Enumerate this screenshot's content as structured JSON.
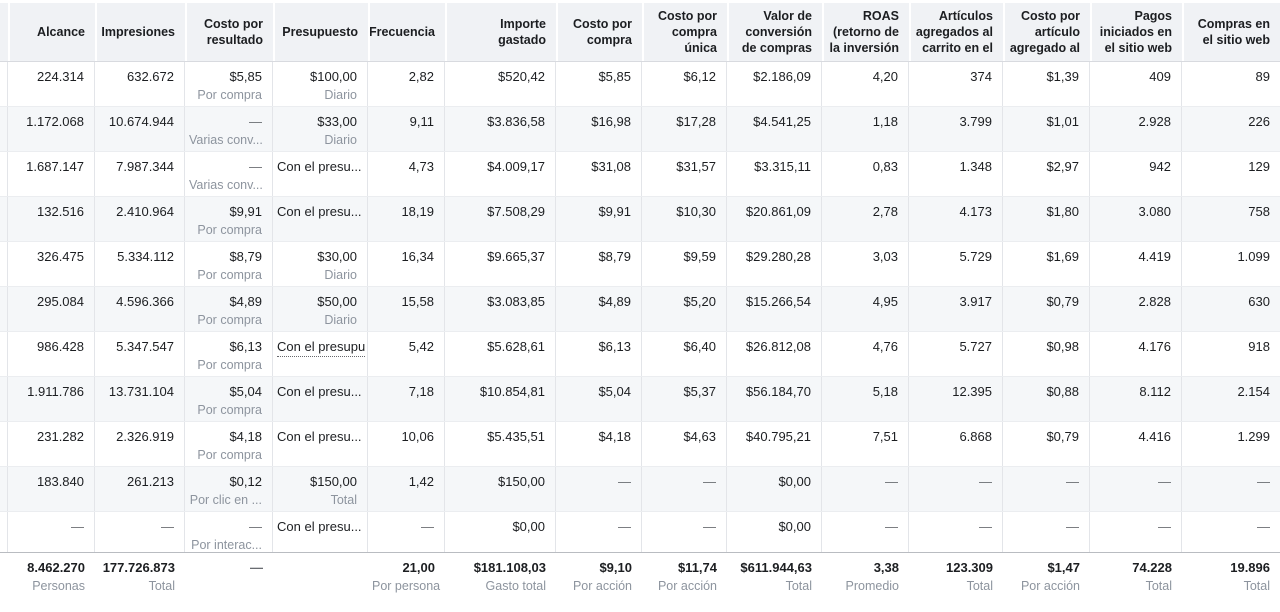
{
  "app": {
    "name": "Ads Manager metrics table (Spanish)"
  },
  "colors": {
    "header_bg": "#f0f2f5",
    "row_alt_bg": "#f5f7f9",
    "border": "#e3e5e9",
    "totals_border": "#b9bcc1",
    "text_primary": "#1c1e21",
    "text_secondary": "#8d949e"
  },
  "table": {
    "columns": [
      {
        "id": "alcance",
        "label": "Alcance"
      },
      {
        "id": "impresiones",
        "label": "Impresiones"
      },
      {
        "id": "costo_por_resultado",
        "label": "Costo por resultado"
      },
      {
        "id": "presupuesto",
        "label": "Presupuesto"
      },
      {
        "id": "frecuencia",
        "label": "Frecuencia"
      },
      {
        "id": "importe_gastado",
        "label": "Importe gastado"
      },
      {
        "id": "costo_por_compra",
        "label": "Costo por compra"
      },
      {
        "id": "costo_por_compra_unica",
        "label": "Costo por compra única"
      },
      {
        "id": "valor_de_conversion_de_compras",
        "label": "Valor de conversión de compras"
      },
      {
        "id": "roas",
        "label": "ROAS (retorno de la inversión"
      },
      {
        "id": "articulos_agregados_al_carrito",
        "label": "Artículos agregados al carrito en el"
      },
      {
        "id": "costo_por_articulo_agregado",
        "label": "Costo por artículo agregado al"
      },
      {
        "id": "pagos_iniciados_sitio_web",
        "label": "Pagos iniciados en el sitio web"
      },
      {
        "id": "compras_sitio_web",
        "label": "Compras en el sitio web"
      }
    ],
    "rows": [
      [
        {
          "v": "224.314"
        },
        {
          "v": "632.672"
        },
        {
          "v": "$5,85",
          "s": "Por compra"
        },
        {
          "v": "$100,00",
          "s": "Diario"
        },
        {
          "v": "2,82"
        },
        {
          "v": "$520,42"
        },
        {
          "v": "$5,85"
        },
        {
          "v": "$6,12"
        },
        {
          "v": "$2.186,09"
        },
        {
          "v": "4,20"
        },
        {
          "v": "374"
        },
        {
          "v": "$1,39"
        },
        {
          "v": "409"
        },
        {
          "v": "89"
        }
      ],
      [
        {
          "v": "1.172.068"
        },
        {
          "v": "10.674.944"
        },
        {
          "v": "—",
          "s": "Varias conv..."
        },
        {
          "v": "$33,00",
          "s": "Diario"
        },
        {
          "v": "9,11"
        },
        {
          "v": "$3.836,58"
        },
        {
          "v": "$16,98"
        },
        {
          "v": "$17,28"
        },
        {
          "v": "$4.541,25"
        },
        {
          "v": "1,18"
        },
        {
          "v": "3.799"
        },
        {
          "v": "$1,01"
        },
        {
          "v": "2.928"
        },
        {
          "v": "226"
        }
      ],
      [
        {
          "v": "1.687.147"
        },
        {
          "v": "7.987.344"
        },
        {
          "v": "—",
          "s": "Varias conv..."
        },
        {
          "v": "Con el presu..."
        },
        {
          "v": "4,73"
        },
        {
          "v": "$4.009,17"
        },
        {
          "v": "$31,08"
        },
        {
          "v": "$31,57"
        },
        {
          "v": "$3.315,11"
        },
        {
          "v": "0,83"
        },
        {
          "v": "1.348"
        },
        {
          "v": "$2,97"
        },
        {
          "v": "942"
        },
        {
          "v": "129"
        }
      ],
      [
        {
          "v": "132.516"
        },
        {
          "v": "2.410.964"
        },
        {
          "v": "$9,91",
          "s": "Por compra"
        },
        {
          "v": "Con el presu..."
        },
        {
          "v": "18,19"
        },
        {
          "v": "$7.508,29"
        },
        {
          "v": "$9,91"
        },
        {
          "v": "$10,30"
        },
        {
          "v": "$20.861,09"
        },
        {
          "v": "2,78"
        },
        {
          "v": "4.173"
        },
        {
          "v": "$1,80"
        },
        {
          "v": "3.080"
        },
        {
          "v": "758"
        }
      ],
      [
        {
          "v": "326.475"
        },
        {
          "v": "5.334.112"
        },
        {
          "v": "$8,79",
          "s": "Por compra"
        },
        {
          "v": "$30,00",
          "s": "Diario"
        },
        {
          "v": "16,34"
        },
        {
          "v": "$9.665,37"
        },
        {
          "v": "$8,79"
        },
        {
          "v": "$9,59"
        },
        {
          "v": "$29.280,28"
        },
        {
          "v": "3,03"
        },
        {
          "v": "5.729"
        },
        {
          "v": "$1,69"
        },
        {
          "v": "4.419"
        },
        {
          "v": "1.099"
        }
      ],
      [
        {
          "v": "295.084"
        },
        {
          "v": "4.596.366"
        },
        {
          "v": "$4,89",
          "s": "Por compra"
        },
        {
          "v": "$50,00",
          "s": "Diario"
        },
        {
          "v": "15,58"
        },
        {
          "v": "$3.083,85"
        },
        {
          "v": "$4,89"
        },
        {
          "v": "$5,20"
        },
        {
          "v": "$15.266,54"
        },
        {
          "v": "4,95"
        },
        {
          "v": "3.917"
        },
        {
          "v": "$0,79"
        },
        {
          "v": "2.828"
        },
        {
          "v": "630"
        }
      ],
      [
        {
          "v": "986.428"
        },
        {
          "v": "5.347.547"
        },
        {
          "v": "$6,13",
          "s": "Por compra"
        },
        {
          "v": "Con el presupu",
          "dot": true
        },
        {
          "v": "5,42"
        },
        {
          "v": "$5.628,61"
        },
        {
          "v": "$6,13"
        },
        {
          "v": "$6,40"
        },
        {
          "v": "$26.812,08"
        },
        {
          "v": "4,76"
        },
        {
          "v": "5.727"
        },
        {
          "v": "$0,98"
        },
        {
          "v": "4.176"
        },
        {
          "v": "918"
        }
      ],
      [
        {
          "v": "1.911.786"
        },
        {
          "v": "13.731.104"
        },
        {
          "v": "$5,04",
          "s": "Por compra"
        },
        {
          "v": "Con el presu..."
        },
        {
          "v": "7,18"
        },
        {
          "v": "$10.854,81"
        },
        {
          "v": "$5,04"
        },
        {
          "v": "$5,37"
        },
        {
          "v": "$56.184,70"
        },
        {
          "v": "5,18"
        },
        {
          "v": "12.395"
        },
        {
          "v": "$0,88"
        },
        {
          "v": "8.112"
        },
        {
          "v": "2.154"
        }
      ],
      [
        {
          "v": "231.282"
        },
        {
          "v": "2.326.919"
        },
        {
          "v": "$4,18",
          "s": "Por compra"
        },
        {
          "v": "Con el presu..."
        },
        {
          "v": "10,06"
        },
        {
          "v": "$5.435,51"
        },
        {
          "v": "$4,18"
        },
        {
          "v": "$4,63"
        },
        {
          "v": "$40.795,21"
        },
        {
          "v": "7,51"
        },
        {
          "v": "6.868"
        },
        {
          "v": "$0,79"
        },
        {
          "v": "4.416"
        },
        {
          "v": "1.299"
        }
      ],
      [
        {
          "v": "183.840"
        },
        {
          "v": "261.213"
        },
        {
          "v": "$0,12",
          "s": "Por clic en ..."
        },
        {
          "v": "$150,00",
          "s": "Total"
        },
        {
          "v": "1,42"
        },
        {
          "v": "$150,00"
        },
        {
          "v": "—"
        },
        {
          "v": "—"
        },
        {
          "v": "$0,00"
        },
        {
          "v": "—"
        },
        {
          "v": "—"
        },
        {
          "v": "—"
        },
        {
          "v": "—"
        },
        {
          "v": "—"
        }
      ],
      [
        {
          "v": "—"
        },
        {
          "v": "—"
        },
        {
          "v": "—",
          "s": "Por interac..."
        },
        {
          "v": "Con el presu..."
        },
        {
          "v": "—"
        },
        {
          "v": "$0,00"
        },
        {
          "v": "—"
        },
        {
          "v": "—"
        },
        {
          "v": "$0,00"
        },
        {
          "v": "—"
        },
        {
          "v": "—"
        },
        {
          "v": "—"
        },
        {
          "v": "—"
        },
        {
          "v": "—"
        }
      ]
    ],
    "totals": [
      {
        "v": "8.462.270",
        "s": "Personas"
      },
      {
        "v": "177.726.873",
        "s": "Total"
      },
      {
        "v": "—"
      },
      {
        "v": ""
      },
      {
        "v": "21,00",
        "s": "Por persona"
      },
      {
        "v": "$181.108,03",
        "s": "Gasto total"
      },
      {
        "v": "$9,10",
        "s": "Por acción"
      },
      {
        "v": "$11,74",
        "s": "Por acción"
      },
      {
        "v": "$611.944,63",
        "s": "Total"
      },
      {
        "v": "3,38",
        "s": "Promedio"
      },
      {
        "v": "123.309",
        "s": "Total"
      },
      {
        "v": "$1,47",
        "s": "Por acción"
      },
      {
        "v": "74.228",
        "s": "Total"
      },
      {
        "v": "19.896",
        "s": "Total"
      }
    ]
  }
}
